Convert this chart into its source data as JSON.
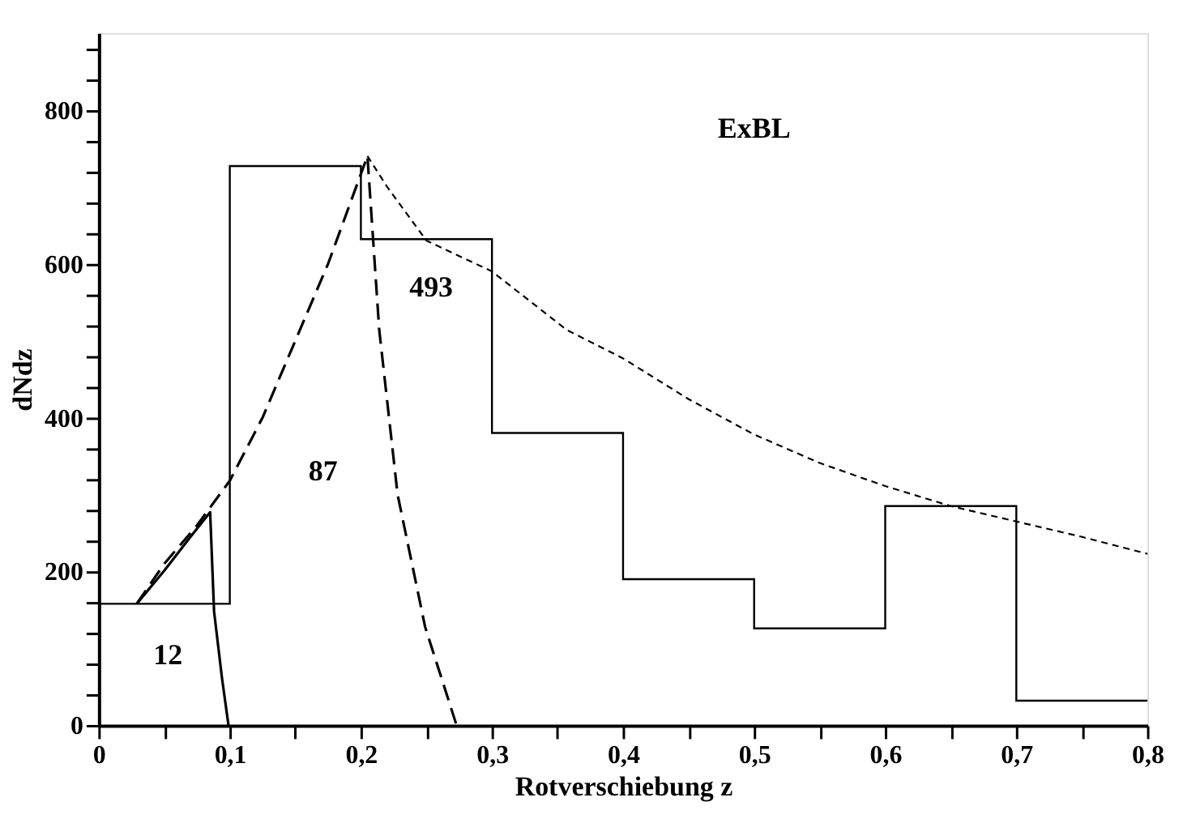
{
  "chart_data": {
    "type": "histogram",
    "xlabel": "Rotverschiebung z",
    "ylabel": "dNdz",
    "bins": [
      0,
      0.1,
      0.2,
      0.3,
      0.4,
      0.5,
      0.6,
      0.7,
      0.8
    ],
    "values": [
      158,
      727,
      632,
      380,
      190,
      126,
      285,
      32
    ],
    "color": "#000000",
    "series": [
      {
        "type": "line",
        "color": "#000000",
        "line_style": "solid",
        "x": [
          0.029,
          0.05,
          0.07,
          0.085,
          0.088,
          0.094,
          0.099
        ],
        "values": [
          158,
          201,
          245,
          277,
          148,
          62,
          0
        ]
      },
      {
        "type": "line",
        "color": "#000000",
        "line_style": "dashed",
        "x": [
          0.029,
          0.05,
          0.075,
          0.1,
          0.125,
          0.15,
          0.175,
          0.205,
          0.214,
          0.228,
          0.249,
          0.273
        ],
        "values": [
          158,
          210,
          260,
          318,
          400,
          500,
          600,
          740,
          514,
          300,
          128,
          0
        ]
      },
      {
        "type": "line",
        "color": "#000000",
        "line_style": "dotted",
        "x": [
          0.205,
          0.22,
          0.25,
          0.3,
          0.357,
          0.4,
          0.45,
          0.5,
          0.55,
          0.6,
          0.65,
          0.7,
          0.75,
          0.8
        ],
        "values": [
          740,
          700,
          630,
          590,
          514,
          477,
          424,
          378,
          341,
          311,
          285,
          265,
          245,
          223
        ]
      }
    ],
    "annotations": [
      "ExBL",
      "12",
      "87",
      "493"
    ],
    "xlim": [
      0,
      0.8
    ],
    "xticks": [
      0,
      {
        "value": 0.05,
        "label": null
      },
      {
        "value": 0.1,
        "label": "0,1"
      },
      {
        "value": 0.15,
        "label": null
      },
      {
        "value": 0.2,
        "label": "0,2"
      },
      {
        "value": 0.25,
        "label": null
      },
      {
        "value": 0.3,
        "label": "0,3"
      },
      {
        "value": 0.35,
        "label": null
      },
      {
        "value": 0.4,
        "label": "0,4"
      },
      {
        "value": 0.45,
        "label": null
      },
      {
        "value": 0.5,
        "label": "0,5"
      },
      {
        "value": 0.55,
        "label": null
      },
      {
        "value": 0.6,
        "label": "0,6"
      },
      {
        "value": 0.65,
        "label": null
      },
      {
        "value": 0.7,
        "label": "0,7"
      },
      {
        "value": 0.75,
        "label": null
      },
      {
        "value": 0.8,
        "label": "0,8"
      }
    ],
    "ylim": [
      0,
      900
    ],
    "yticks": [
      0,
      {
        "value": 40,
        "label": null
      },
      {
        "value": 80,
        "label": null
      },
      {
        "value": 120,
        "label": null
      },
      {
        "value": 160,
        "label": null
      },
      200,
      {
        "value": 240,
        "label": null
      },
      {
        "value": 280,
        "label": null
      },
      {
        "value": 320,
        "label": null
      },
      {
        "value": 360,
        "label": null
      },
      400,
      {
        "value": 440,
        "label": null
      },
      {
        "value": 480,
        "label": null
      },
      {
        "value": 520,
        "label": null
      },
      {
        "value": 560,
        "label": null
      },
      600,
      {
        "value": 640,
        "label": null
      },
      {
        "value": 680,
        "label": null
      },
      {
        "value": 720,
        "label": null
      },
      {
        "value": 760,
        "label": null
      },
      800,
      {
        "value": 840,
        "label": null
      },
      {
        "value": 880,
        "label": null
      }
    ],
    "grid": false
  }
}
